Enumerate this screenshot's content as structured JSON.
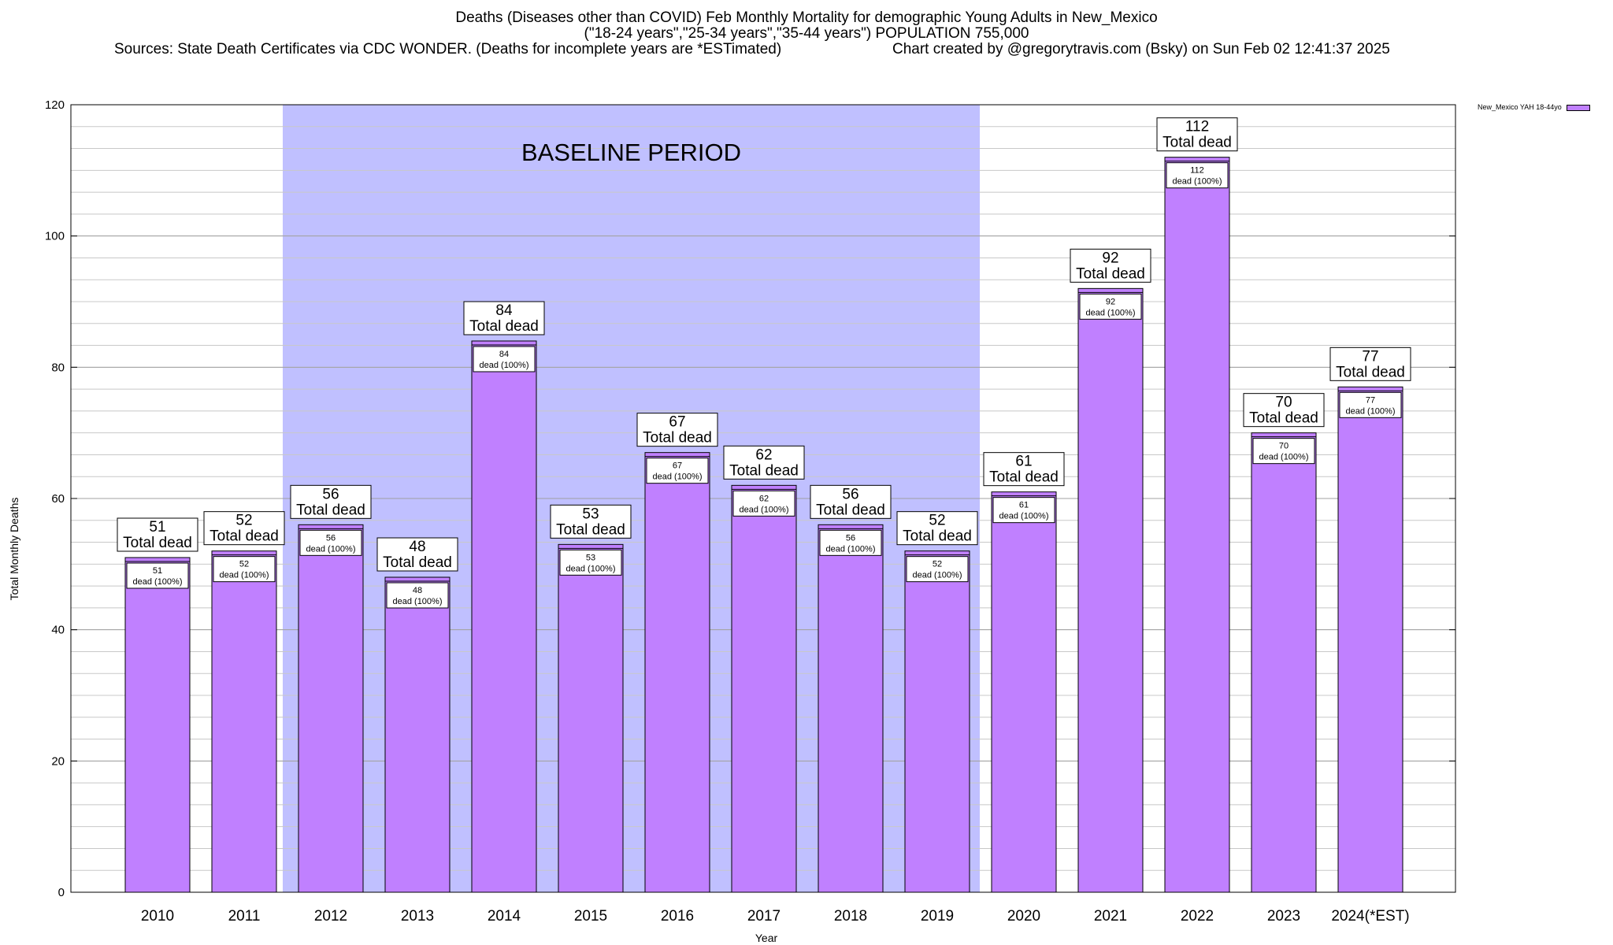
{
  "chart": {
    "title_line1": "Deaths (Diseases other than COVID) Feb Monthly Mortality for demographic Young Adults in New_Mexico",
    "title_line2": "(\"18-24 years\",\"25-34 years\",\"35-44 years\") POPULATION 755,000",
    "sources": "Sources: State Death Certificates via CDC WONDER. (Deaths for incomplete years are *ESTimated)",
    "credit": "Chart created by @gregorytravis.com (Bsky) on Sun Feb 02 12:41:37 2025"
  },
  "chart_data": {
    "type": "bar",
    "categories": [
      "2010",
      "2011",
      "2012",
      "2013",
      "2014",
      "2015",
      "2016",
      "2017",
      "2018",
      "2019",
      "2020",
      "2021",
      "2022",
      "2023",
      "2024(*EST)"
    ],
    "series": [
      {
        "name": "New_Mexico YAH 18-44yo",
        "values": [
          51,
          52,
          56,
          48,
          84,
          53,
          67,
          62,
          56,
          52,
          61,
          92,
          112,
          70,
          77
        ]
      }
    ],
    "xlabel": "Year",
    "ylabel": "Total Monthly Deaths",
    "ylim": [
      0,
      120
    ],
    "yticks": [
      0,
      20,
      40,
      60,
      80,
      100,
      120
    ],
    "grid": true,
    "legend_position": "top-right",
    "bar_color": "#c080ff",
    "top_label_suffix": "Total dead",
    "inner_label_suffix": "dead (100%)",
    "baseline": {
      "label": "BASELINE PERIOD",
      "start_category": "2012",
      "end_category": "2019",
      "color": "#c0c0ff"
    }
  }
}
